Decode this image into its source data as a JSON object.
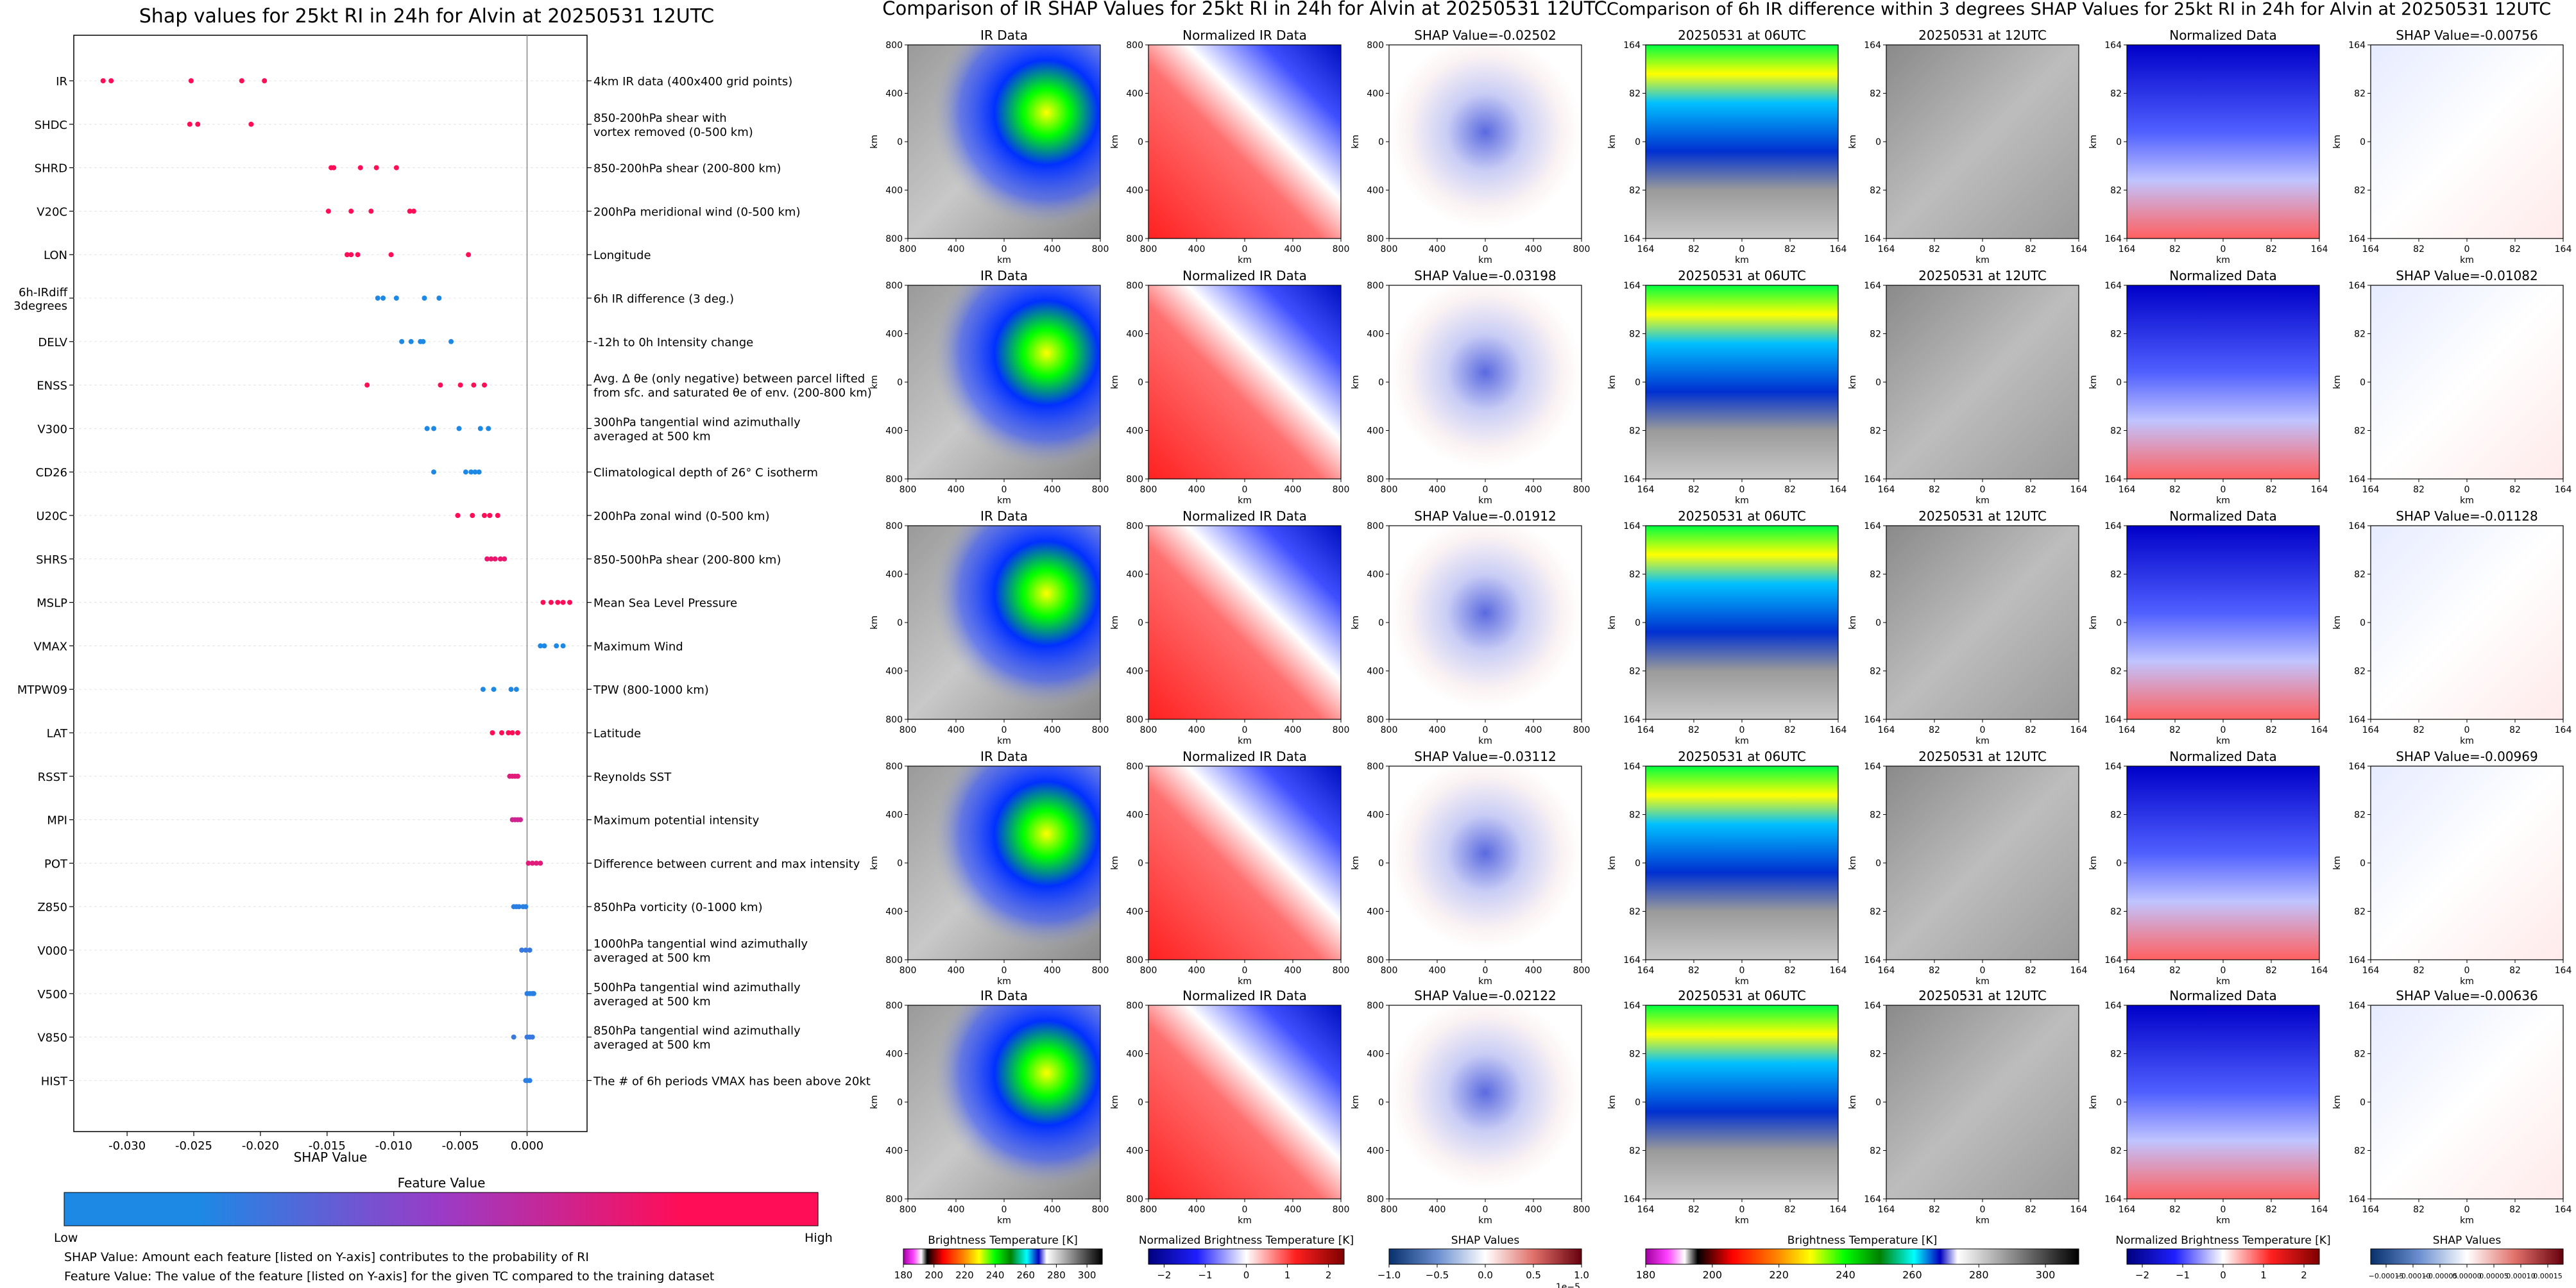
{
  "left_panel": {
    "title": "Shap values for 25kt RI in 24h for Alvin at 20250531 12UTC",
    "xlabel": "SHAP Value",
    "features": [
      {
        "code": "IR",
        "desc": "4km IR data (400x400 grid points)"
      },
      {
        "code": "SHDC",
        "desc": "850-200hPa shear with\nvortex removed (0-500 km)"
      },
      {
        "code": "SHRD",
        "desc": "850-200hPa shear (200-800 km)"
      },
      {
        "code": "V20C",
        "desc": "200hPa meridional wind (0-500 km)"
      },
      {
        "code": "LON",
        "desc": "Longitude"
      },
      {
        "code": "6h-IRdiff\n3degrees",
        "desc": "6h IR difference (3 deg.)"
      },
      {
        "code": "DELV",
        "desc": "-12h to 0h Intensity change"
      },
      {
        "code": "ENSS",
        "desc": "Avg. Δ θe (only negative) between parcel lifted\nfrom sfc. and saturated θe of env. (200-800 km)"
      },
      {
        "code": "V300",
        "desc": "300hPa tangential wind azimuthally\naveraged at 500 km"
      },
      {
        "code": "CD26",
        "desc": "Climatological depth of 26° C isotherm"
      },
      {
        "code": "U20C",
        "desc": "200hPa zonal wind (0-500 km)"
      },
      {
        "code": "SHRS",
        "desc": "850-500hPa shear (200-800 km)"
      },
      {
        "code": "MSLP",
        "desc": "Mean Sea Level Pressure"
      },
      {
        "code": "VMAX",
        "desc": "Maximum Wind"
      },
      {
        "code": "MTPW09",
        "desc": "TPW (800-1000 km)"
      },
      {
        "code": "LAT",
        "desc": "Latitude"
      },
      {
        "code": "RSST",
        "desc": "Reynolds SST"
      },
      {
        "code": "MPI",
        "desc": "Maximum potential intensity"
      },
      {
        "code": "POT",
        "desc": "Difference between current and max intensity"
      },
      {
        "code": "Z850",
        "desc": "850hPa vorticity (0-1000 km)"
      },
      {
        "code": "V000",
        "desc": "1000hPa tangential wind azimuthally\naveraged at 500 km"
      },
      {
        "code": "V500",
        "desc": "500hPa tangential wind azimuthally\naveraged at 500 km"
      },
      {
        "code": "V850",
        "desc": "850hPa tangential wind azimuthally\naveraged at 500 km"
      },
      {
        "code": "HIST",
        "desc": "The # of 6h periods VMAX has been above 20kt"
      }
    ],
    "colorbar": {
      "title": "Feature Value",
      "low": "Low",
      "high": "High",
      "color_low": "#1E88E5",
      "color_high": "#FF0D57"
    },
    "note1": "SHAP Value: Amount each feature [listed on Y-axis] contributes to the probability of RI",
    "note2": "Feature Value: The value of the feature [listed on Y-axis] for the given TC compared to the training dataset"
  },
  "chart_data": [
    {
      "type": "scatter",
      "title": "Shap values for 25kt RI in 24h for Alvin at 20250531 12UTC",
      "xlabel": "SHAP Value",
      "ylabel": "",
      "xlim": [
        -0.034,
        0.0045
      ],
      "xticks": [
        "-0.030",
        "-0.025",
        "-0.020",
        "-0.015",
        "-0.010",
        "-0.005",
        "0.000"
      ],
      "xtick_values": [
        -0.03,
        -0.025,
        -0.02,
        -0.015,
        -0.01,
        -0.005,
        0.0
      ],
      "categories": [
        "IR",
        "SHDC",
        "SHRD",
        "V20C",
        "LON",
        "6h-IRdiff 3degrees",
        "DELV",
        "ENSS",
        "V300",
        "CD26",
        "U20C",
        "SHRS",
        "MSLP",
        "VMAX",
        "MTPW09",
        "LAT",
        "RSST",
        "MPI",
        "POT",
        "Z850",
        "V000",
        "V500",
        "V850",
        "HIST"
      ],
      "series": [
        {
          "feature": "IR",
          "points": [
            [
              -0.0318,
              1
            ],
            [
              -0.0312,
              1
            ],
            [
              -0.0252,
              1
            ],
            [
              -0.0214,
              1
            ],
            [
              -0.0197,
              1
            ]
          ]
        },
        {
          "feature": "SHDC",
          "points": [
            [
              -0.0253,
              1
            ],
            [
              -0.0247,
              1
            ],
            [
              -0.0207,
              1
            ]
          ]
        },
        {
          "feature": "SHRD",
          "points": [
            [
              -0.0147,
              1
            ],
            [
              -0.0145,
              1
            ],
            [
              -0.0125,
              1
            ],
            [
              -0.0113,
              1
            ],
            [
              -0.0098,
              1
            ]
          ]
        },
        {
          "feature": "V20C",
          "points": [
            [
              -0.0149,
              1
            ],
            [
              -0.0132,
              1
            ],
            [
              -0.0117,
              1
            ],
            [
              -0.0088,
              1
            ],
            [
              -0.0085,
              1
            ]
          ]
        },
        {
          "feature": "LON",
          "points": [
            [
              -0.0135,
              1
            ],
            [
              -0.0132,
              1
            ],
            [
              -0.0127,
              1
            ],
            [
              -0.0102,
              1
            ],
            [
              -0.0044,
              1
            ]
          ]
        },
        {
          "feature": "6h-IRdiff 3degrees",
          "points": [
            [
              -0.0112,
              0
            ],
            [
              -0.0108,
              0
            ],
            [
              -0.0098,
              0
            ],
            [
              -0.0077,
              0
            ],
            [
              -0.0066,
              0
            ]
          ]
        },
        {
          "feature": "DELV",
          "points": [
            [
              -0.0094,
              0
            ],
            [
              -0.0087,
              0
            ],
            [
              -0.008,
              0
            ],
            [
              -0.0078,
              0
            ],
            [
              -0.0057,
              0
            ]
          ]
        },
        {
          "feature": "ENSS",
          "points": [
            [
              -0.012,
              1
            ],
            [
              -0.0065,
              1
            ],
            [
              -0.005,
              1
            ],
            [
              -0.004,
              1
            ],
            [
              -0.0032,
              1
            ]
          ]
        },
        {
          "feature": "V300",
          "points": [
            [
              -0.0075,
              0
            ],
            [
              -0.007,
              0
            ],
            [
              -0.0051,
              0
            ],
            [
              -0.0035,
              0
            ],
            [
              -0.0029,
              0
            ]
          ]
        },
        {
          "feature": "CD26",
          "points": [
            [
              -0.007,
              0
            ],
            [
              -0.0046,
              0
            ],
            [
              -0.0042,
              0
            ],
            [
              -0.0039,
              0
            ],
            [
              -0.0036,
              0
            ]
          ]
        },
        {
          "feature": "U20C",
          "points": [
            [
              -0.0052,
              1
            ],
            [
              -0.0041,
              1
            ],
            [
              -0.0032,
              1
            ],
            [
              -0.0028,
              1
            ],
            [
              -0.0022,
              1
            ]
          ]
        },
        {
          "feature": "SHRS",
          "points": [
            [
              -0.003,
              0.9
            ],
            [
              -0.0027,
              0.9
            ],
            [
              -0.0024,
              0.9
            ],
            [
              -0.002,
              0.9
            ],
            [
              -0.0017,
              0.9
            ]
          ]
        },
        {
          "feature": "MSLP",
          "points": [
            [
              0.0012,
              1
            ],
            [
              0.0018,
              1
            ],
            [
              0.0023,
              1
            ],
            [
              0.0027,
              1
            ],
            [
              0.0032,
              1
            ]
          ]
        },
        {
          "feature": "VMAX",
          "points": [
            [
              0.001,
              0
            ],
            [
              0.0013,
              0
            ],
            [
              0.0022,
              0
            ],
            [
              0.0027,
              0
            ]
          ]
        },
        {
          "feature": "MTPW09",
          "points": [
            [
              -0.0033,
              0
            ],
            [
              -0.0025,
              0
            ],
            [
              -0.0012,
              0
            ],
            [
              -0.0008,
              0
            ]
          ]
        },
        {
          "feature": "LAT",
          "points": [
            [
              -0.0026,
              1
            ],
            [
              -0.0019,
              1
            ],
            [
              -0.0014,
              1
            ],
            [
              -0.0011,
              1
            ],
            [
              -0.0007,
              1
            ]
          ]
        },
        {
          "feature": "RSST",
          "points": [
            [
              -0.0013,
              0.85
            ],
            [
              -0.0011,
              0.85
            ],
            [
              -0.0009,
              0.85
            ],
            [
              -0.0007,
              0.85
            ]
          ]
        },
        {
          "feature": "MPI",
          "points": [
            [
              -0.0011,
              0.75
            ],
            [
              -0.0009,
              0.75
            ],
            [
              -0.0007,
              0.75
            ],
            [
              -0.0005,
              0.75
            ]
          ]
        },
        {
          "feature": "POT",
          "points": [
            [
              0.0001,
              0.85
            ],
            [
              0.0004,
              0.85
            ],
            [
              0.0007,
              0.85
            ],
            [
              0.001,
              0.85
            ]
          ]
        },
        {
          "feature": "Z850",
          "points": [
            [
              -0.001,
              0.05
            ],
            [
              -0.0008,
              0.05
            ],
            [
              -0.0006,
              0.05
            ],
            [
              -0.0003,
              0.05
            ],
            [
              -0.0001,
              0.05
            ]
          ]
        },
        {
          "feature": "V000",
          "points": [
            [
              -0.0004,
              0.1
            ],
            [
              -0.0001,
              0.1
            ],
            [
              0.0002,
              0.1
            ]
          ]
        },
        {
          "feature": "V500",
          "points": [
            [
              0.0,
              0.05
            ],
            [
              0.0002,
              0.05
            ],
            [
              0.0004,
              0.05
            ],
            [
              0.0005,
              0.05
            ]
          ]
        },
        {
          "feature": "V850",
          "points": [
            [
              -0.001,
              0.1
            ],
            [
              0.0,
              0.1
            ],
            [
              0.0002,
              0.1
            ],
            [
              0.0004,
              0.1
            ]
          ]
        },
        {
          "feature": "HIST",
          "points": [
            [
              -0.0001,
              0.05
            ],
            [
              0.0,
              0.05
            ],
            [
              0.0002,
              0.05
            ]
          ]
        }
      ]
    },
    {
      "type": "heatmap",
      "title": "Comparison of IR SHAP Values for 25kt RI in 24h for Alvin at 20250531 12UTC",
      "panel_titles": [
        "IR Data",
        "Normalized IR Data",
        "SHAP Value"
      ],
      "rows": 5,
      "shap_values": [
        "-0.02502",
        "-0.03198",
        "-0.01912",
        "-0.03112",
        "-0.02122"
      ],
      "ticks": [
        "800",
        "400",
        "0",
        "400",
        "800"
      ],
      "axis_label": "km",
      "colorbars": [
        {
          "label": "Brightness Temperature [K]",
          "ticks": [
            "180",
            "200",
            "220",
            "240",
            "260",
            "280",
            "300"
          ],
          "min": 180,
          "max": 310
        },
        {
          "label": "Normalized Brightness Temperature [K]",
          "ticks": [
            "−2",
            "−1",
            "0",
            "1",
            "2"
          ],
          "min": -2.5,
          "max": 2.5
        },
        {
          "label": "SHAP Values",
          "ticks": [
            "−1.0",
            "−0.5",
            "0.0",
            "0.5",
            "1.0"
          ],
          "min": -1.0,
          "max": 1.0,
          "scale": "1e−5"
        }
      ]
    },
    {
      "type": "heatmap",
      "title": "Comparison of 6h IR difference within 3 degrees SHAP Values for 25kt RI in 24h for Alvin at 20250531 12UTC",
      "panel_titles": [
        "20250531 at 06UTC",
        "20250531 at 12UTC",
        "Normalized Data",
        "SHAP Value"
      ],
      "rows": 5,
      "shap_values": [
        "-0.00756",
        "-0.01082",
        "-0.01128",
        "-0.00969",
        "-0.00636"
      ],
      "ticks": [
        "164",
        "82",
        "0",
        "82",
        "164"
      ],
      "axis_label": "km",
      "colorbars": [
        {
          "label": "Brightness Temperature [K]",
          "ticks": [
            "180",
            "200",
            "220",
            "240",
            "260",
            "280",
            "300"
          ],
          "min": 180,
          "max": 310
        },
        {
          "label": "Normalized Brightness Temperature [K]",
          "ticks": [
            "−2",
            "−1",
            "0",
            "1",
            "2"
          ],
          "min": -2.5,
          "max": 2.5
        },
        {
          "label": "SHAP Values",
          "ticks": [
            "−0.00015",
            "−0.00010",
            "−0.00005",
            "0.00000",
            "0.00005",
            "0.00010",
            "0.00015"
          ],
          "min": -0.00015,
          "max": 0.00015
        }
      ]
    }
  ],
  "colors": {
    "low": "#1E88E5",
    "high": "#FF0D57",
    "axis": "#000000",
    "zero_line": "#888888"
  }
}
